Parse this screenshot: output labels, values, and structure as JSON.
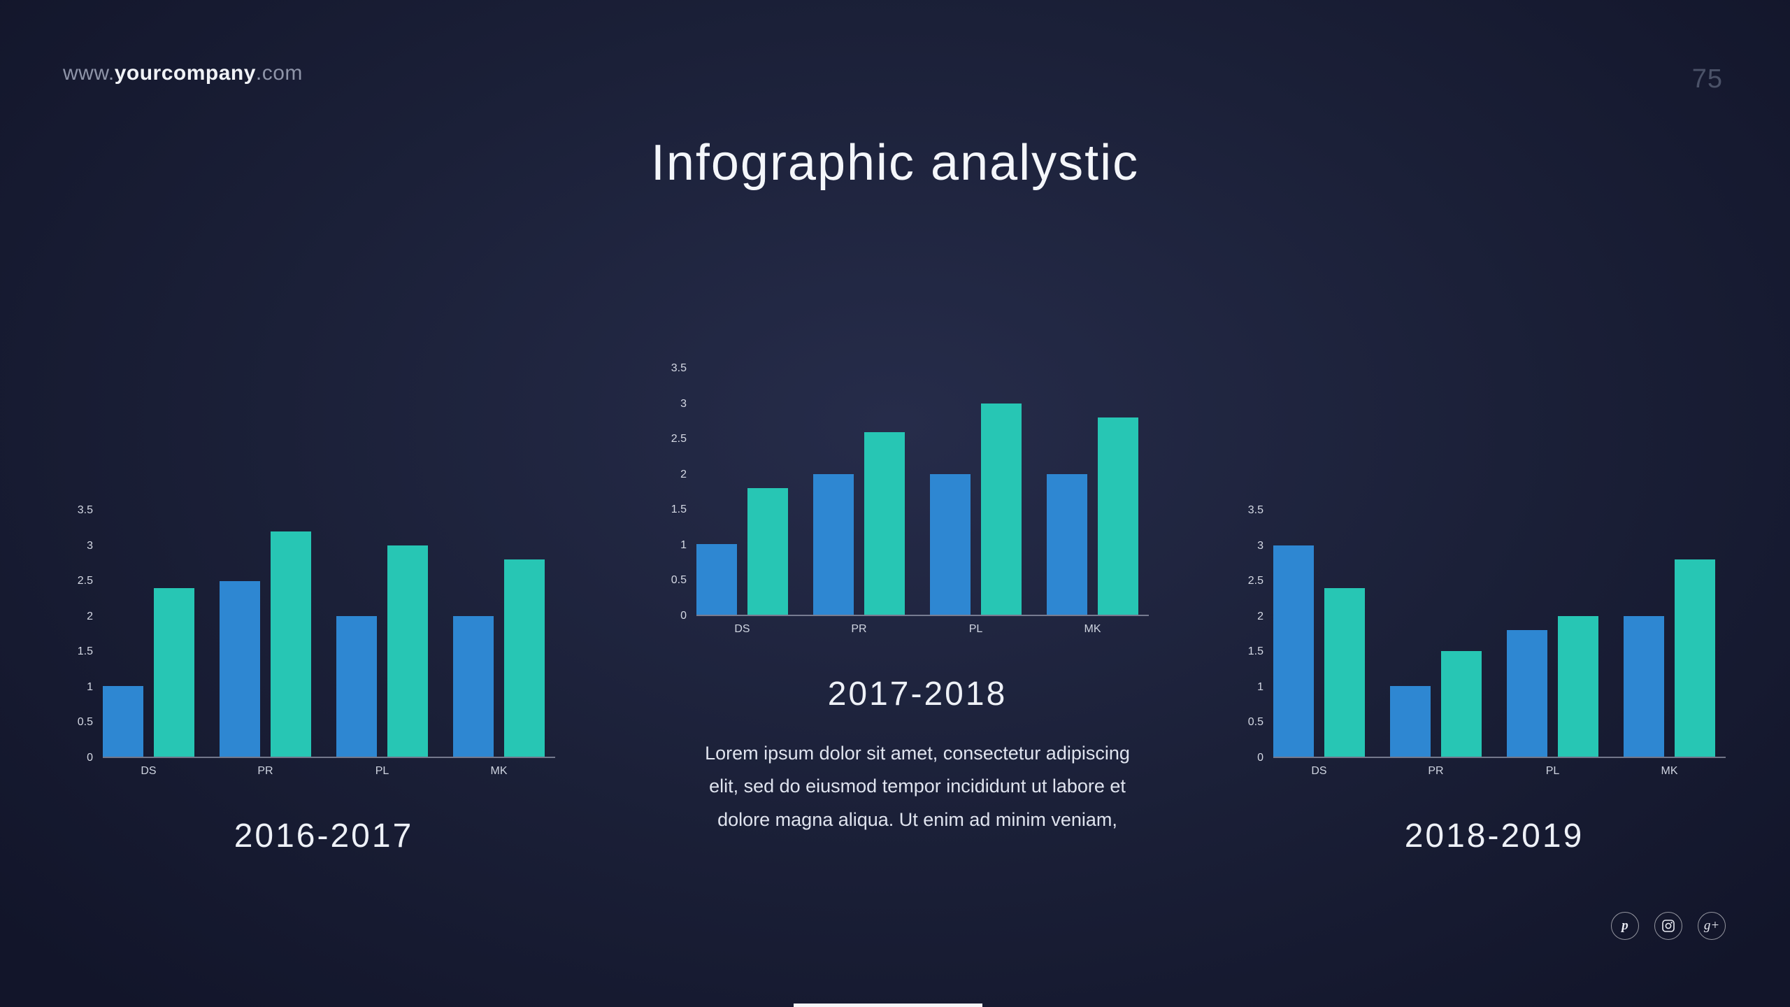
{
  "page": {
    "url_prefix": "www.",
    "url_bold": "yourcompany",
    "url_suffix": ".com",
    "page_number": "75",
    "title": "Infographic analystic",
    "description": "Lorem ipsum dolor sit amet, consectetur adipiscing elit, sed do eiusmod tempor incididunt ut labore et dolore magna aliqua. Ut enim ad minim veniam,"
  },
  "colors": {
    "bar_blue": "#2e87d2",
    "bar_teal": "#27c6b4",
    "background_center": "#262c4a",
    "background_edge": "#12152a",
    "axis_line": "rgba(205,210,225,0.5)",
    "title_text": "#f4f6fa",
    "muted_text": "#8e94a8"
  },
  "social": [
    {
      "name": "pinterest",
      "glyph": "p"
    },
    {
      "name": "instagram",
      "glyph": ""
    },
    {
      "name": "google-plus",
      "glyph": "g+"
    }
  ],
  "chart_data": [
    {
      "type": "bar",
      "title": "2016-2017",
      "categories": [
        "DS",
        "PR",
        "PL",
        "MK"
      ],
      "series": [
        {
          "name": "blue",
          "color": "#2e87d2",
          "values": [
            1,
            2.5,
            2,
            2
          ]
        },
        {
          "name": "teal",
          "color": "#27c6b4",
          "values": [
            2.4,
            3.2,
            3,
            2.8
          ]
        }
      ],
      "yticks": [
        "3.5",
        "3",
        "2.5",
        "2",
        "1.5",
        "1",
        "0.5",
        "0"
      ],
      "ylim": [
        0,
        3.5
      ],
      "grid": false,
      "legend": false
    },
    {
      "type": "bar",
      "title": "2017-2018",
      "categories": [
        "DS",
        "PR",
        "PL",
        "MK"
      ],
      "series": [
        {
          "name": "blue",
          "color": "#2e87d2",
          "values": [
            1,
            2,
            2,
            2
          ]
        },
        {
          "name": "teal",
          "color": "#27c6b4",
          "values": [
            1.8,
            2.6,
            3,
            2.8
          ]
        }
      ],
      "yticks": [
        "3.5",
        "3",
        "2.5",
        "2",
        "1.5",
        "1",
        "0.5",
        "0"
      ],
      "ylim": [
        0,
        3.5
      ],
      "grid": false,
      "legend": false
    },
    {
      "type": "bar",
      "title": "2018-2019",
      "categories": [
        "DS",
        "PR",
        "PL",
        "MK"
      ],
      "series": [
        {
          "name": "blue",
          "color": "#2e87d2",
          "values": [
            3,
            1,
            1.8,
            2
          ]
        },
        {
          "name": "teal",
          "color": "#27c6b4",
          "values": [
            2.4,
            1.5,
            2,
            2.8
          ]
        }
      ],
      "yticks": [
        "3.5",
        "3",
        "2.5",
        "2",
        "1.5",
        "1",
        "0.5",
        "0"
      ],
      "ylim": [
        0,
        3.5
      ],
      "grid": false,
      "legend": false
    }
  ]
}
